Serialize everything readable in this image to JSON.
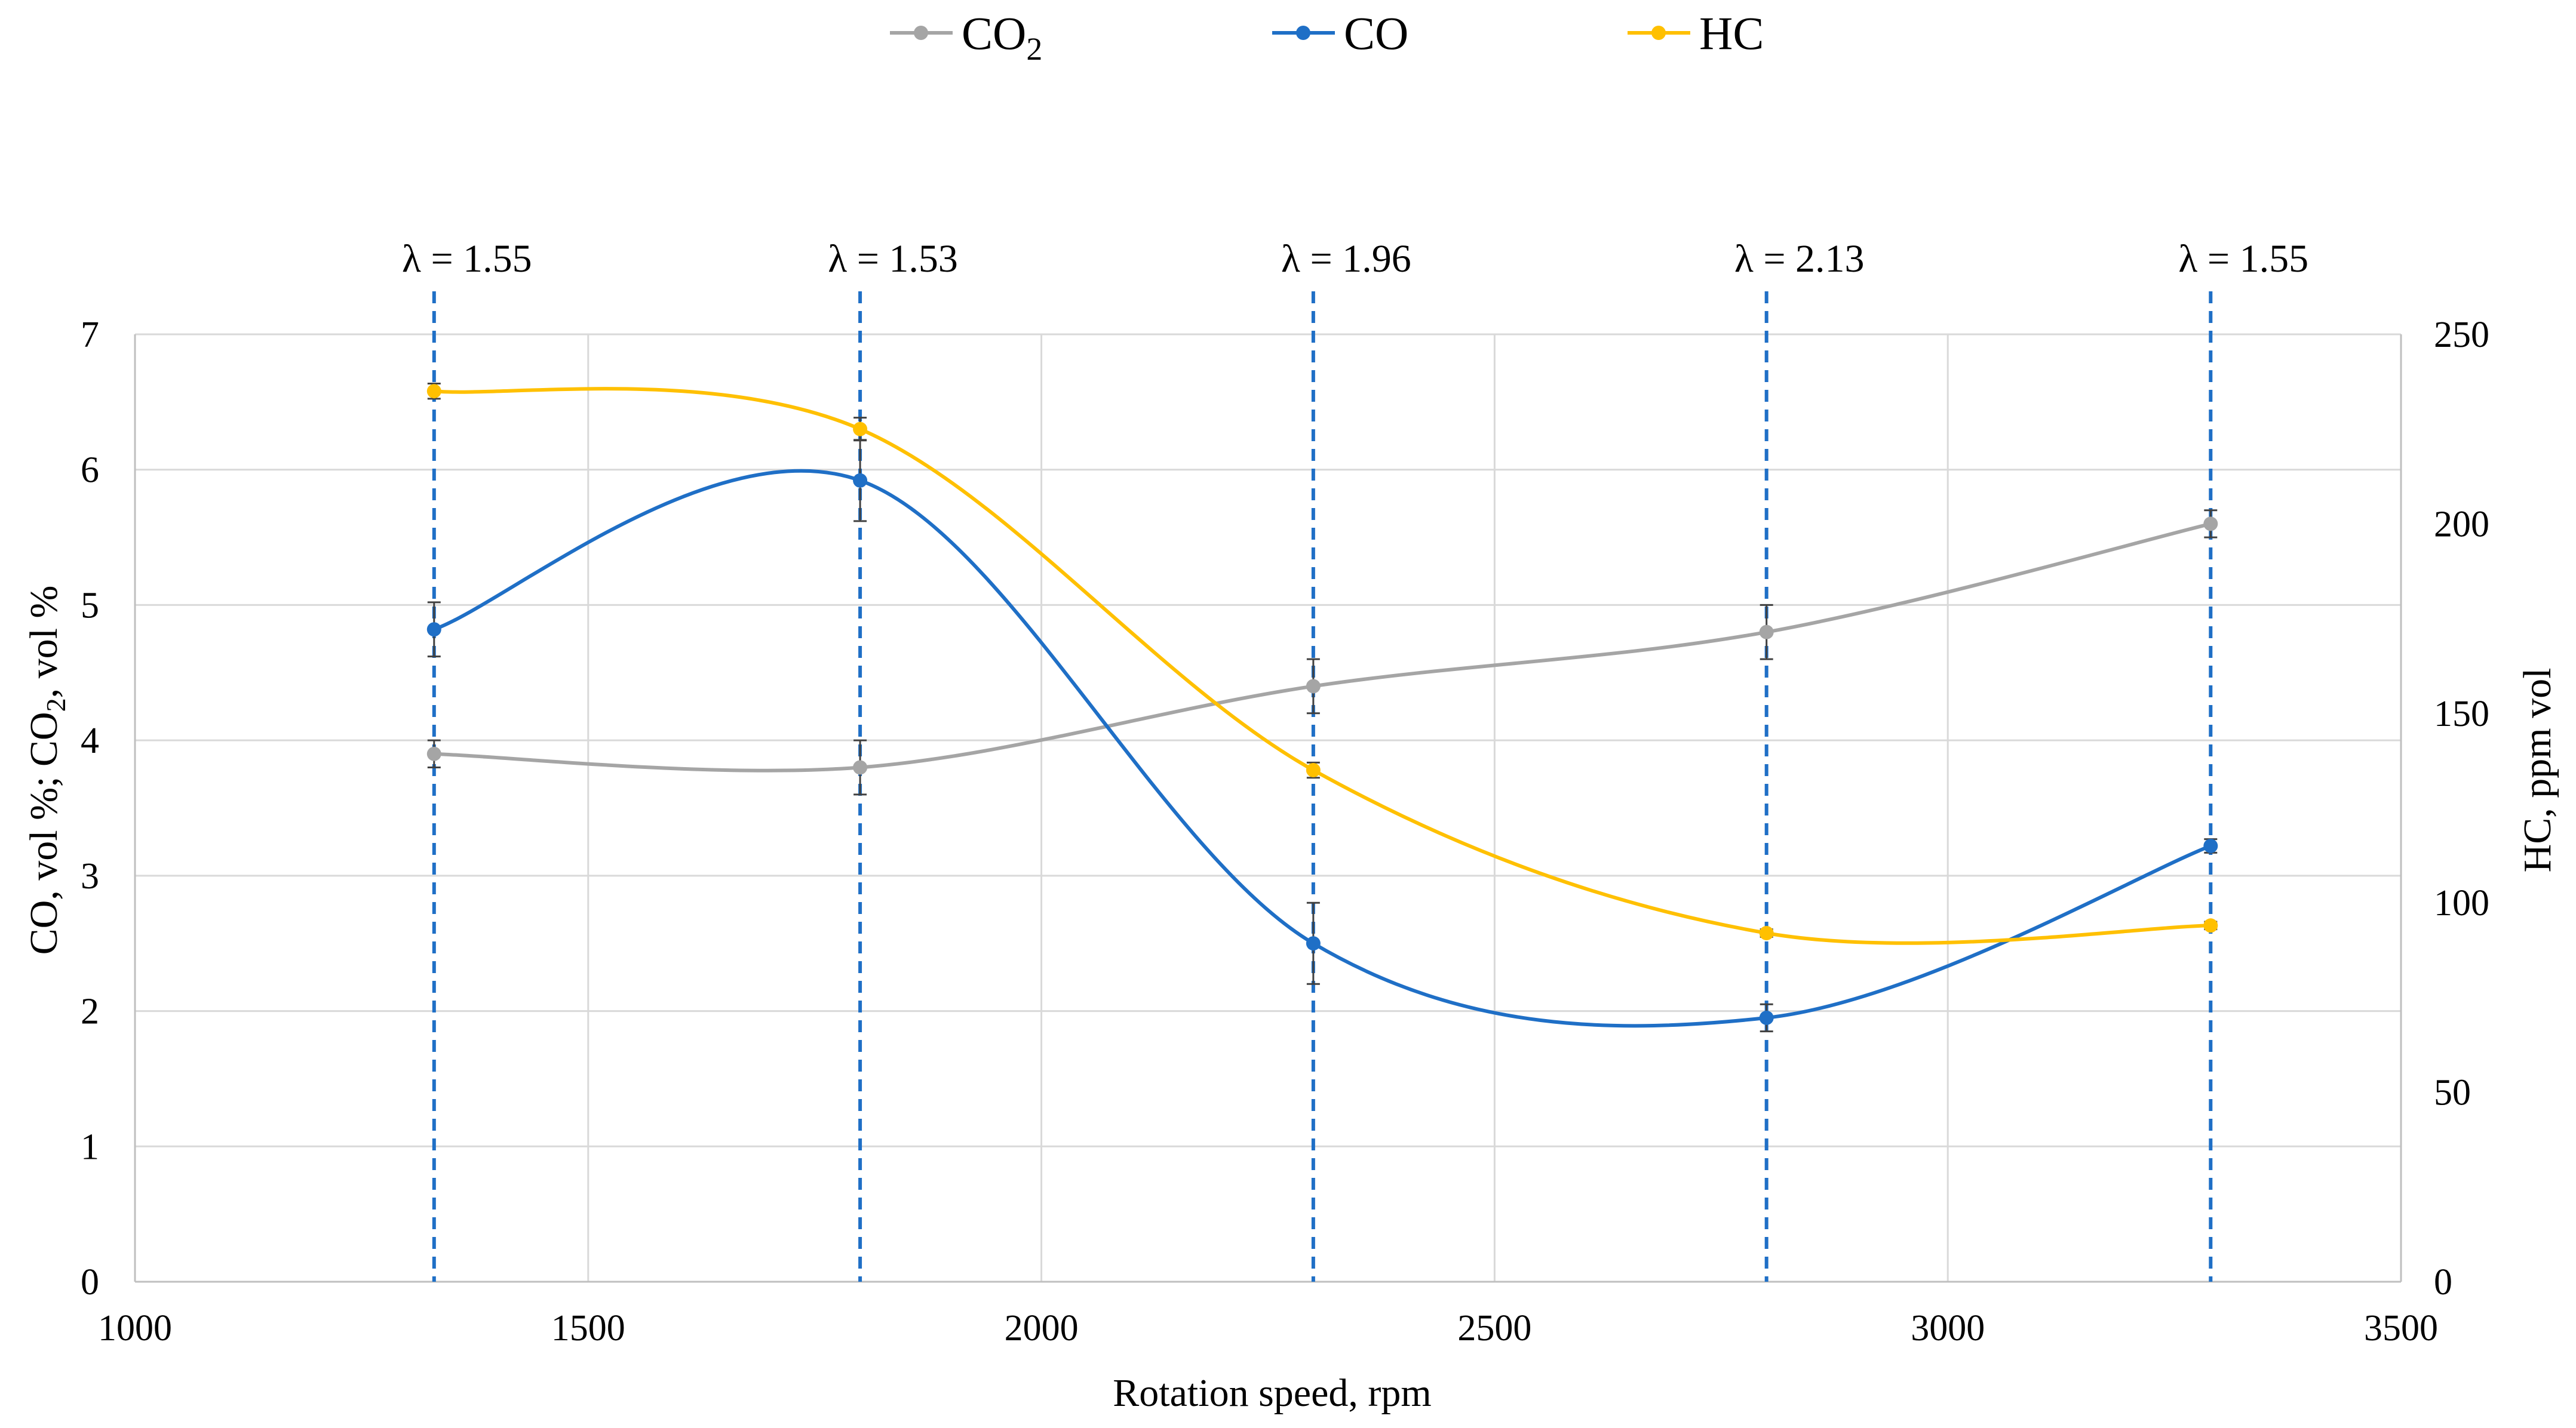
{
  "chart_data": {
    "type": "line",
    "title": "",
    "xlabel": "Rotation speed, rpm",
    "ylabel_left": {
      "main": "CO, vol %; CO",
      "sub": "2",
      "tail": ", vol %"
    },
    "ylabel_right": "HC, ppm vol",
    "xlim": [
      1000,
      3500
    ],
    "xticks": [
      1000,
      1500,
      2000,
      2500,
      3000,
      3500
    ],
    "ylim_left": [
      0,
      7
    ],
    "yticks_left": [
      0,
      1,
      2,
      3,
      4,
      5,
      6,
      7
    ],
    "ylim_right": [
      0,
      250
    ],
    "yticks_right": [
      0,
      50,
      100,
      150,
      200,
      250
    ],
    "grid": true,
    "smooth": true,
    "legend_position": "top-center",
    "x": [
      1330,
      1800,
      2300,
      2800,
      3290
    ],
    "series": [
      {
        "name": "CO",
        "sub": "2",
        "axis": "left",
        "color": "#a5a5a5",
        "values": [
          3.9,
          3.8,
          4.4,
          4.8,
          5.6
        ],
        "errors": [
          0.1,
          0.2,
          0.2,
          0.2,
          0.1
        ]
      },
      {
        "name": "CO",
        "sub": "",
        "axis": "left",
        "color": "#1f6fc6",
        "values": [
          4.82,
          5.92,
          2.5,
          1.95,
          3.22
        ],
        "errors": [
          0.2,
          0.3,
          0.3,
          0.1,
          0.05
        ]
      },
      {
        "name": "HC",
        "sub": "",
        "axis": "right",
        "color": "#ffc000",
        "values": [
          235,
          225,
          135,
          92,
          94
        ],
        "errors": [
          2,
          3,
          2,
          1,
          1
        ]
      }
    ],
    "annotations": {
      "color": "#1f6fc6",
      "labels": [
        "λ = 1.55",
        "λ = 1.53",
        "λ = 1.96",
        "λ = 2.13",
        "λ = 1.55"
      ]
    }
  }
}
